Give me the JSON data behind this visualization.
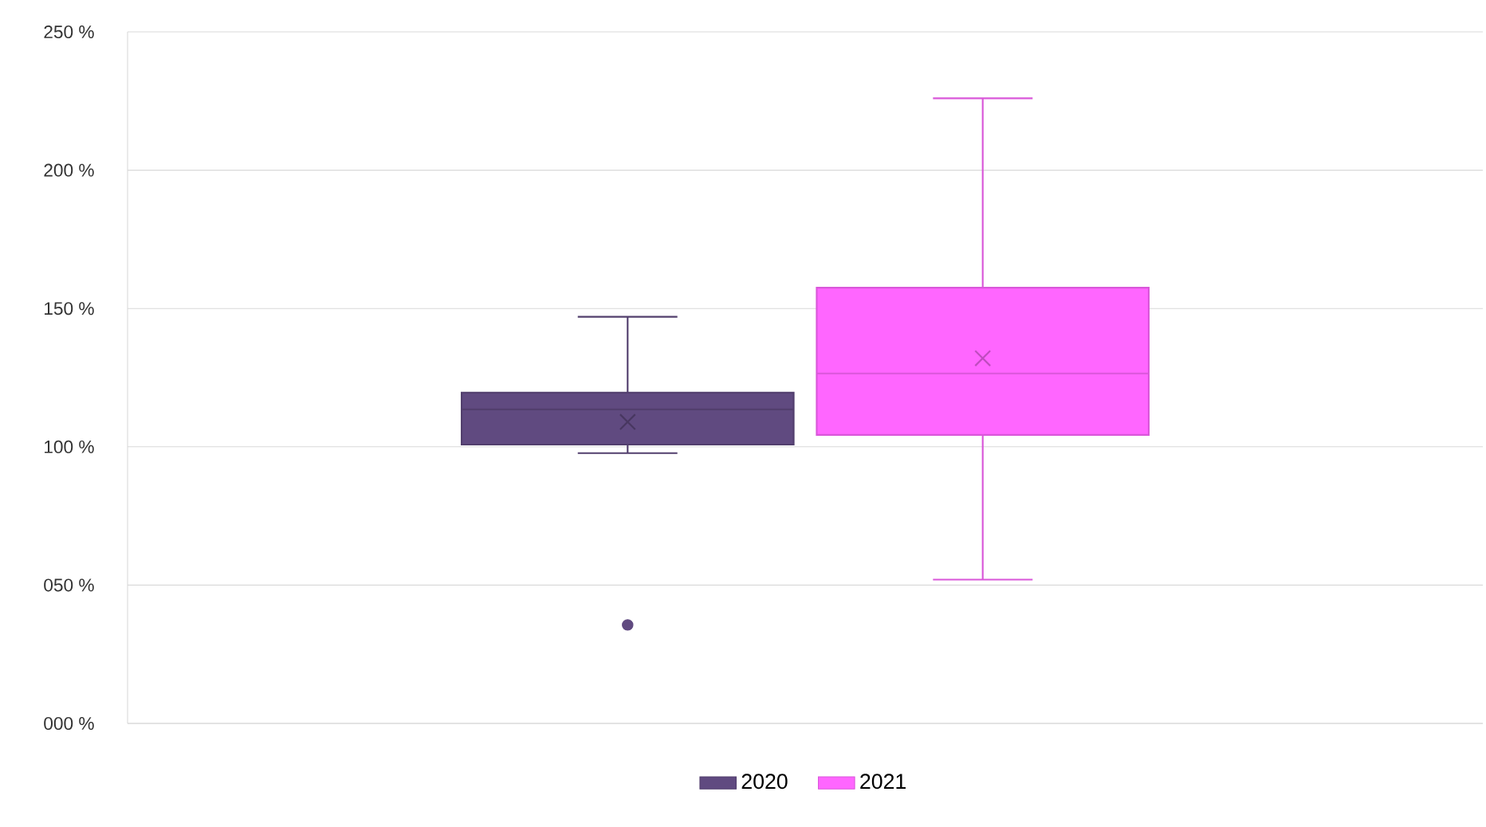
{
  "chart_data": {
    "type": "box",
    "categories": [
      null
    ],
    "ylim": [
      0,
      250
    ],
    "yticks": [
      {
        "value": 0,
        "label": "000 %"
      },
      {
        "value": 50,
        "label": "050 %"
      },
      {
        "value": 100,
        "label": "100 %"
      },
      {
        "value": 150,
        "label": "150 %"
      },
      {
        "value": 200,
        "label": "200 %"
      },
      {
        "value": 250,
        "label": "250 %"
      }
    ],
    "grid": "y",
    "legend": "bottom",
    "series": [
      {
        "name": "2020",
        "color": "#604a80",
        "boxes": [
          {
            "low": 97.7,
            "q1": 100.8,
            "median": 113.5,
            "q3": 119.6,
            "high": 147,
            "mean": 109,
            "outliers": [
              35.6
            ]
          }
        ]
      },
      {
        "name": "2021",
        "color": "#ff66ff",
        "boxes": [
          {
            "low": 52,
            "q1": 104.3,
            "median": 126.5,
            "q3": 157.5,
            "high": 226,
            "mean": 132
          }
        ]
      }
    ]
  }
}
